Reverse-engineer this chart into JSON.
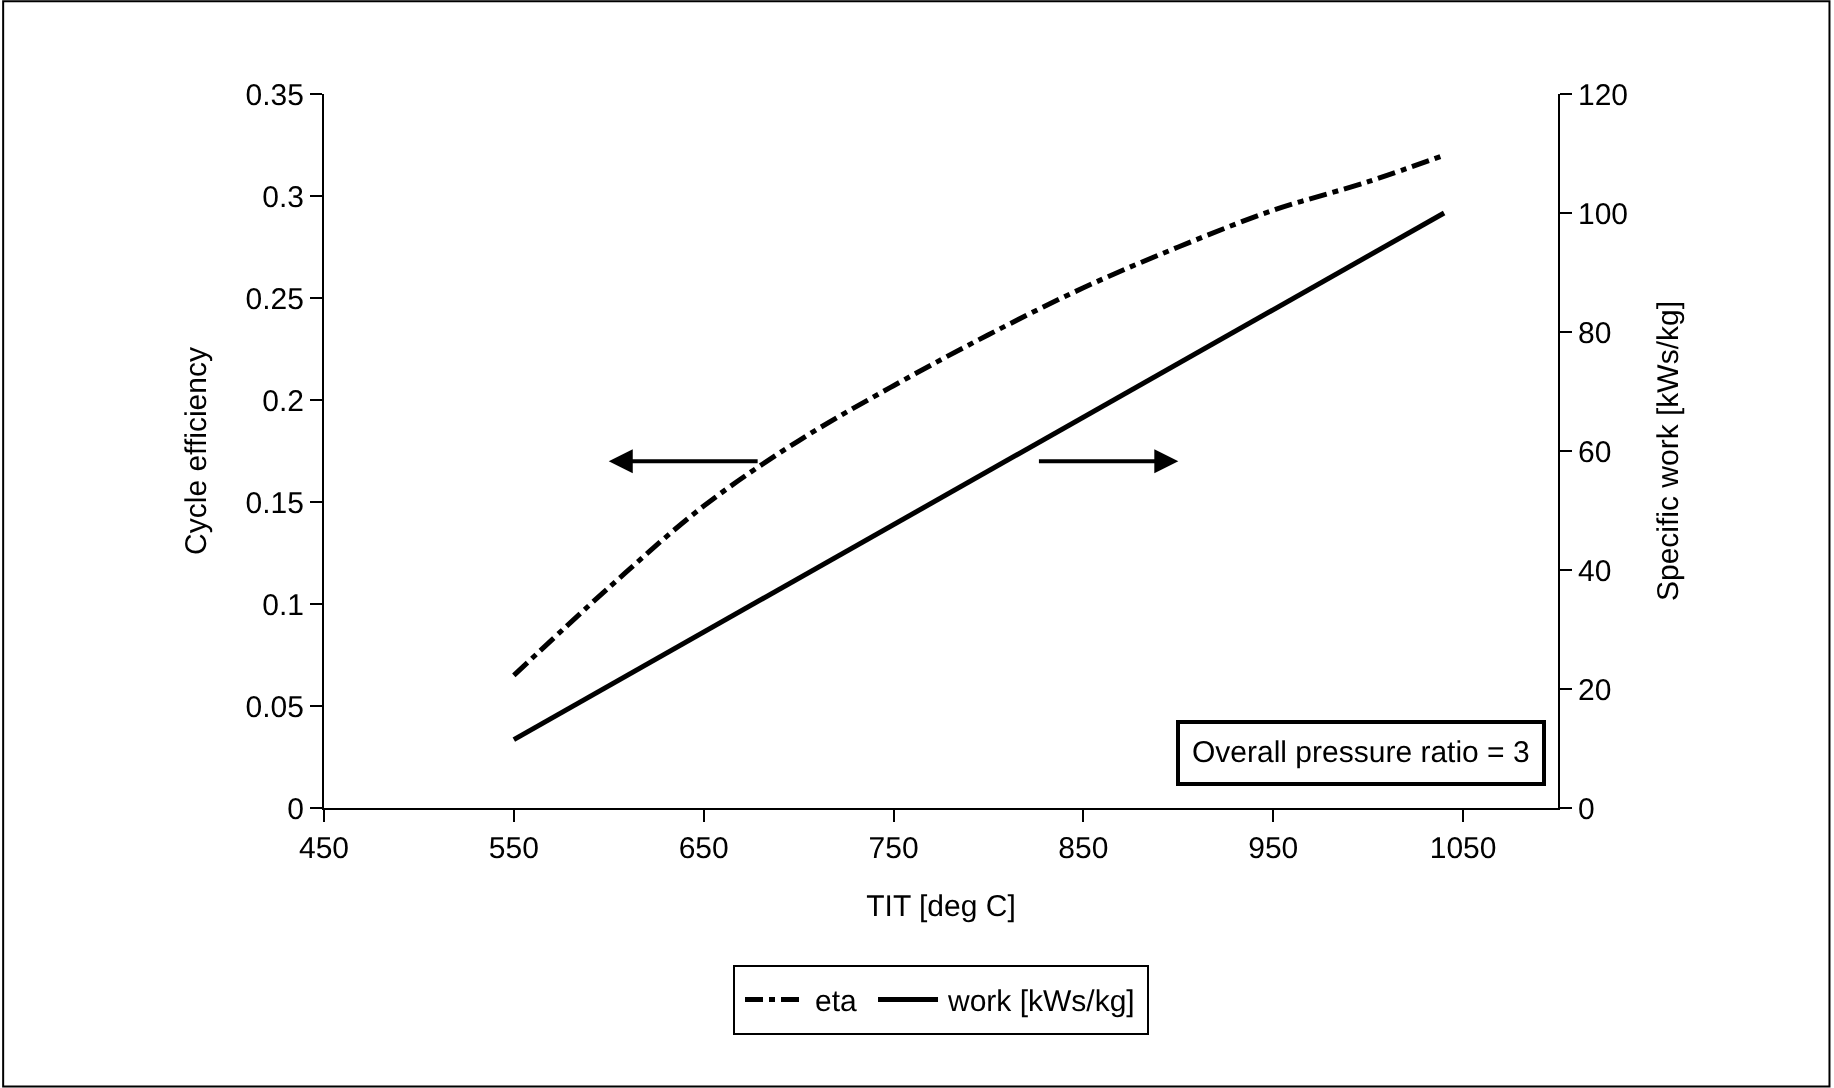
{
  "chart_data": {
    "type": "line",
    "xlabel": "TIT [deg C]",
    "ylabel": "Cycle efficiency",
    "y2label": "Specific work [kWs/kg]",
    "xlim": [
      450,
      1100
    ],
    "xticks": [
      450,
      550,
      650,
      750,
      850,
      950,
      1050
    ],
    "ylim": [
      0,
      0.35
    ],
    "yticks": [
      0,
      0.05,
      0.1,
      0.15,
      0.2,
      0.25,
      0.3,
      0.35
    ],
    "y2lim": [
      0,
      120
    ],
    "y2ticks": [
      0,
      20,
      40,
      60,
      80,
      100,
      120
    ],
    "legend": "bottom",
    "annotations": [
      "Overall pressure ratio = 3"
    ],
    "series": [
      {
        "name": "eta",
        "color": "#000000",
        "line_style": "dashdot",
        "x": [
          550,
          600,
          650,
          700,
          750,
          800,
          850,
          900,
          950,
          1000,
          1040
        ],
        "values": [
          0.065,
          0.108,
          0.148,
          0.18,
          0.207,
          0.232,
          0.255,
          0.275,
          0.293,
          0.307,
          0.32
        ]
      },
      {
        "name": "work [kWs/kg]",
        "color": "#000000",
        "line_style": "solid",
        "axis": "y2",
        "x": [
          550,
          1040
        ],
        "values": [
          11.5,
          100
        ]
      }
    ]
  }
}
